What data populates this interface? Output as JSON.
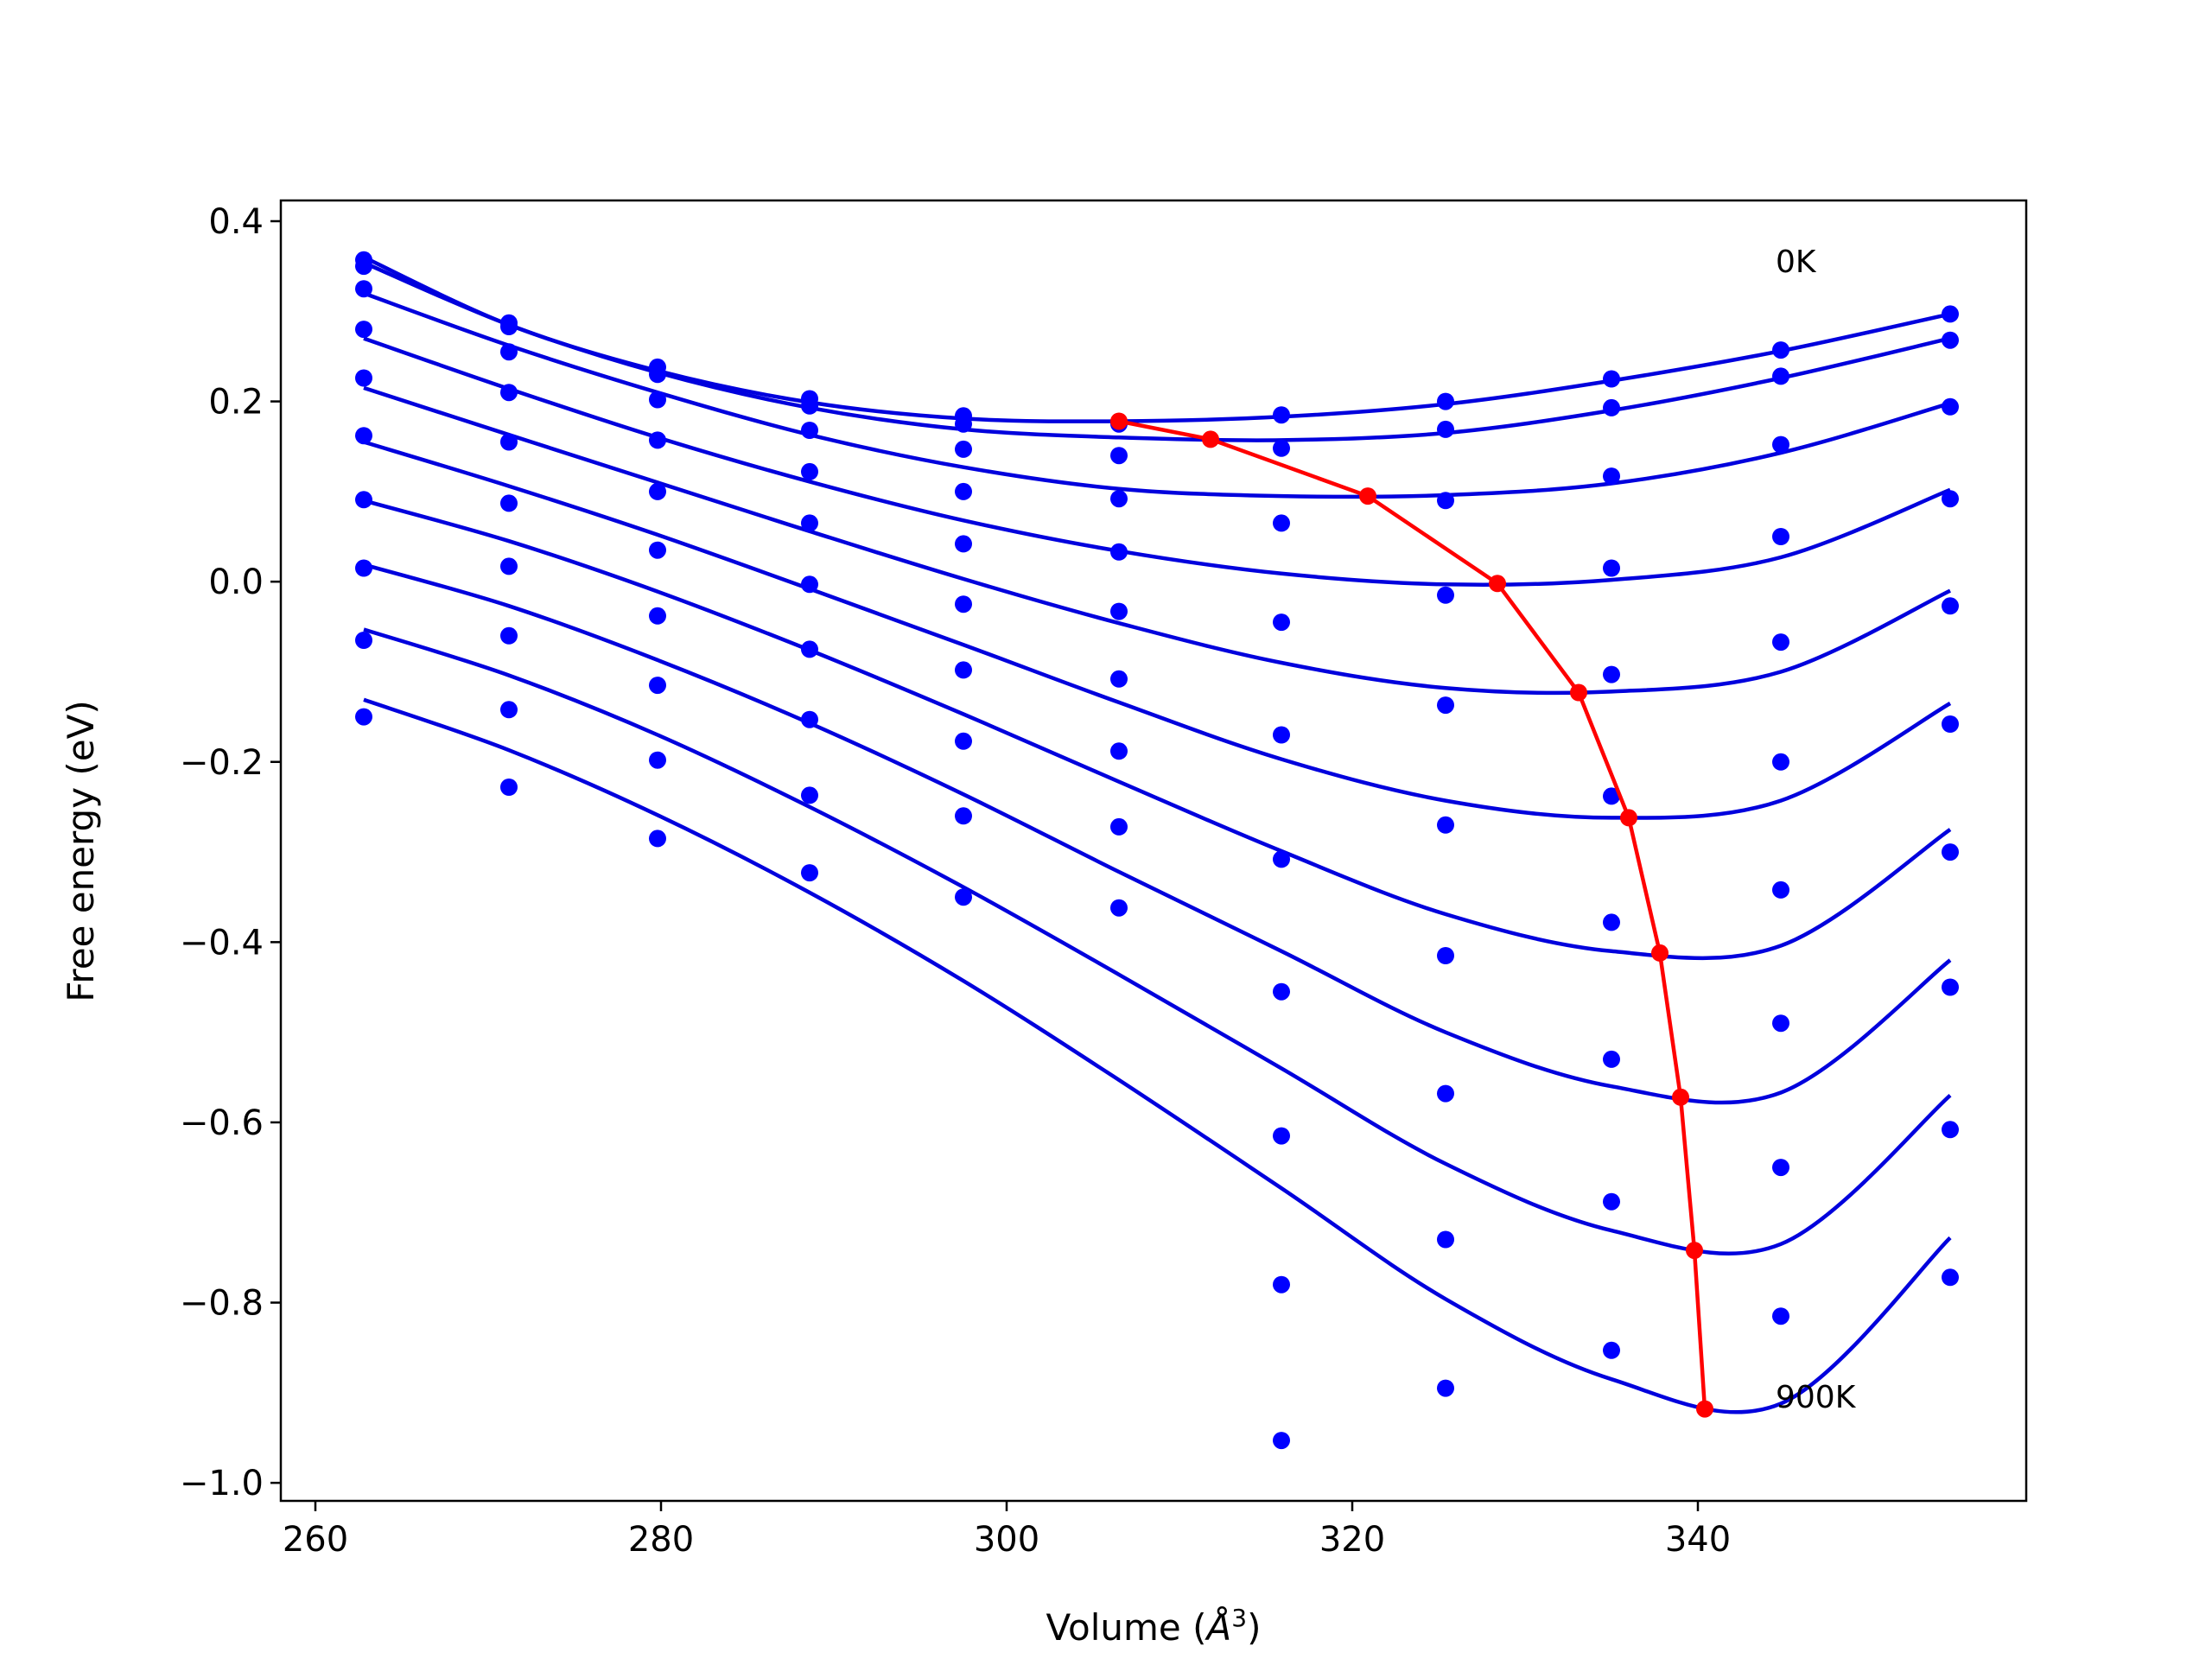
{
  "chart_data": {
    "type": "scatter",
    "title": "",
    "xlabel": "Volume (",
    "xlabel_symbol": "Å",
    "xlabel_exp": "3",
    "xlabel_close": ")",
    "ylabel": "Free energy (eV)",
    "xlim": [
      258,
      359
    ],
    "ylim": [
      -1.02,
      0.423
    ],
    "xticks": [
      260,
      280,
      300,
      320,
      340
    ],
    "xtick_labels": [
      "260",
      "280",
      "300",
      "320",
      "340"
    ],
    "yticks": [
      0.4,
      0.2,
      0.0,
      -0.2,
      -0.4,
      -0.6,
      -0.8,
      -1.0
    ],
    "ytick_labels": [
      "0.4",
      "0.2",
      "0.0",
      "−0.2",
      "−0.4",
      "−0.6",
      "−0.8",
      "−1.0"
    ],
    "grid": false,
    "annotations": [
      {
        "text": "0K",
        "x": 344.5,
        "y": 0.355
      },
      {
        "text": "900K",
        "x": 344.5,
        "y": -0.905
      }
    ],
    "colors": {
      "fit": "#0000dd",
      "points": "#0000ff",
      "minima": "#ff0000"
    },
    "volumes": [
      262.8,
      271.2,
      279.8,
      288.6,
      297.5,
      306.5,
      315.9,
      325.4,
      335.0,
      344.8,
      354.6
    ],
    "series": [
      {
        "points": [
          0.357,
          0.287,
          0.238,
          0.203,
          0.184,
          0.175,
          0.185,
          0.2,
          0.225,
          0.257,
          0.297
        ],
        "fit": [
          0.36,
          0.285,
          0.234,
          0.199,
          0.181,
          0.178,
          0.183,
          0.197,
          0.223,
          0.256,
          0.297
        ]
      },
      {
        "points": [
          0.35,
          0.283,
          0.23,
          0.195,
          0.175,
          0.14,
          0.148,
          0.169,
          0.193,
          0.228,
          0.268
        ],
        "fit": [
          0.354,
          0.285,
          0.232,
          0.193,
          0.169,
          0.16,
          0.157,
          0.165,
          0.19,
          0.226,
          0.27
        ]
      },
      {
        "points": [
          0.325,
          0.255,
          0.202,
          0.168,
          0.147,
          0.092,
          0.065,
          0.09,
          0.117,
          0.152,
          0.194
        ],
        "fit": [
          0.32,
          0.262,
          0.21,
          0.163,
          0.127,
          0.103,
          0.095,
          0.096,
          0.109,
          0.143,
          0.198
        ]
      },
      {
        "points": [
          0.28,
          0.21,
          0.157,
          0.122,
          0.1,
          0.033,
          -0.045,
          -0.015,
          0.015,
          0.05,
          0.092
        ],
        "fit": [
          0.27,
          0.214,
          0.16,
          0.111,
          0.068,
          0.034,
          0.009,
          -0.003,
          0.002,
          0.027,
          0.102
        ]
      },
      {
        "points": [
          0.226,
          0.155,
          0.1,
          0.065,
          0.042,
          -0.033,
          -0.17,
          -0.137,
          -0.103,
          -0.067,
          -0.027
        ],
        "fit": [
          0.215,
          0.163,
          0.11,
          0.056,
          0.003,
          -0.046,
          -0.09,
          -0.118,
          -0.122,
          -0.1,
          -0.01
        ]
      },
      {
        "points": [
          0.162,
          0.087,
          0.035,
          -0.003,
          -0.025,
          -0.108,
          -0.308,
          -0.27,
          -0.238,
          -0.2,
          -0.158
        ],
        "fit": [
          0.155,
          0.106,
          0.052,
          -0.008,
          -0.07,
          -0.134,
          -0.197,
          -0.243,
          -0.262,
          -0.243,
          -0.135
        ]
      },
      {
        "points": [
          0.091,
          0.017,
          -0.038,
          -0.075,
          -0.098,
          -0.188,
          -0.455,
          -0.415,
          -0.378,
          -0.342,
          -0.3
        ],
        "fit": [
          0.09,
          0.045,
          -0.011,
          -0.076,
          -0.147,
          -0.222,
          -0.299,
          -0.369,
          -0.41,
          -0.404,
          -0.275
        ]
      },
      {
        "points": [
          0.015,
          -0.06,
          -0.115,
          -0.153,
          -0.177,
          -0.272,
          -0.615,
          -0.568,
          -0.53,
          -0.49,
          -0.45
        ],
        "fit": [
          0.019,
          -0.027,
          -0.087,
          -0.157,
          -0.236,
          -0.322,
          -0.41,
          -0.5,
          -0.56,
          -0.567,
          -0.42
        ]
      },
      {
        "points": [
          -0.065,
          -0.142,
          -0.198,
          -0.237,
          -0.26,
          -0.362,
          -0.78,
          -0.73,
          -0.688,
          -0.65,
          -0.608
        ],
        "fit": [
          -0.053,
          -0.104,
          -0.17,
          -0.25,
          -0.339,
          -0.436,
          -0.54,
          -0.646,
          -0.72,
          -0.735,
          -0.57
        ]
      },
      {
        "points": [
          -0.15,
          -0.228,
          -0.285,
          -0.323,
          -0.35,
          null,
          -0.953,
          -0.895,
          -0.853,
          -0.815,
          -0.772
        ],
        "fit": [
          -0.131,
          -0.187,
          -0.259,
          -0.345,
          -0.443,
          -0.553,
          -0.673,
          -0.796,
          -0.885,
          -0.912,
          -0.728
        ]
      }
    ],
    "minima": {
      "x": [
        306.5,
        311.8,
        320.9,
        328.4,
        333.1,
        336.0,
        337.8,
        339.0,
        339.8,
        340.4
      ],
      "y": [
        0.178,
        0.158,
        0.095,
        -0.002,
        -0.123,
        -0.262,
        -0.412,
        -0.572,
        -0.742,
        -0.918
      ]
    }
  }
}
